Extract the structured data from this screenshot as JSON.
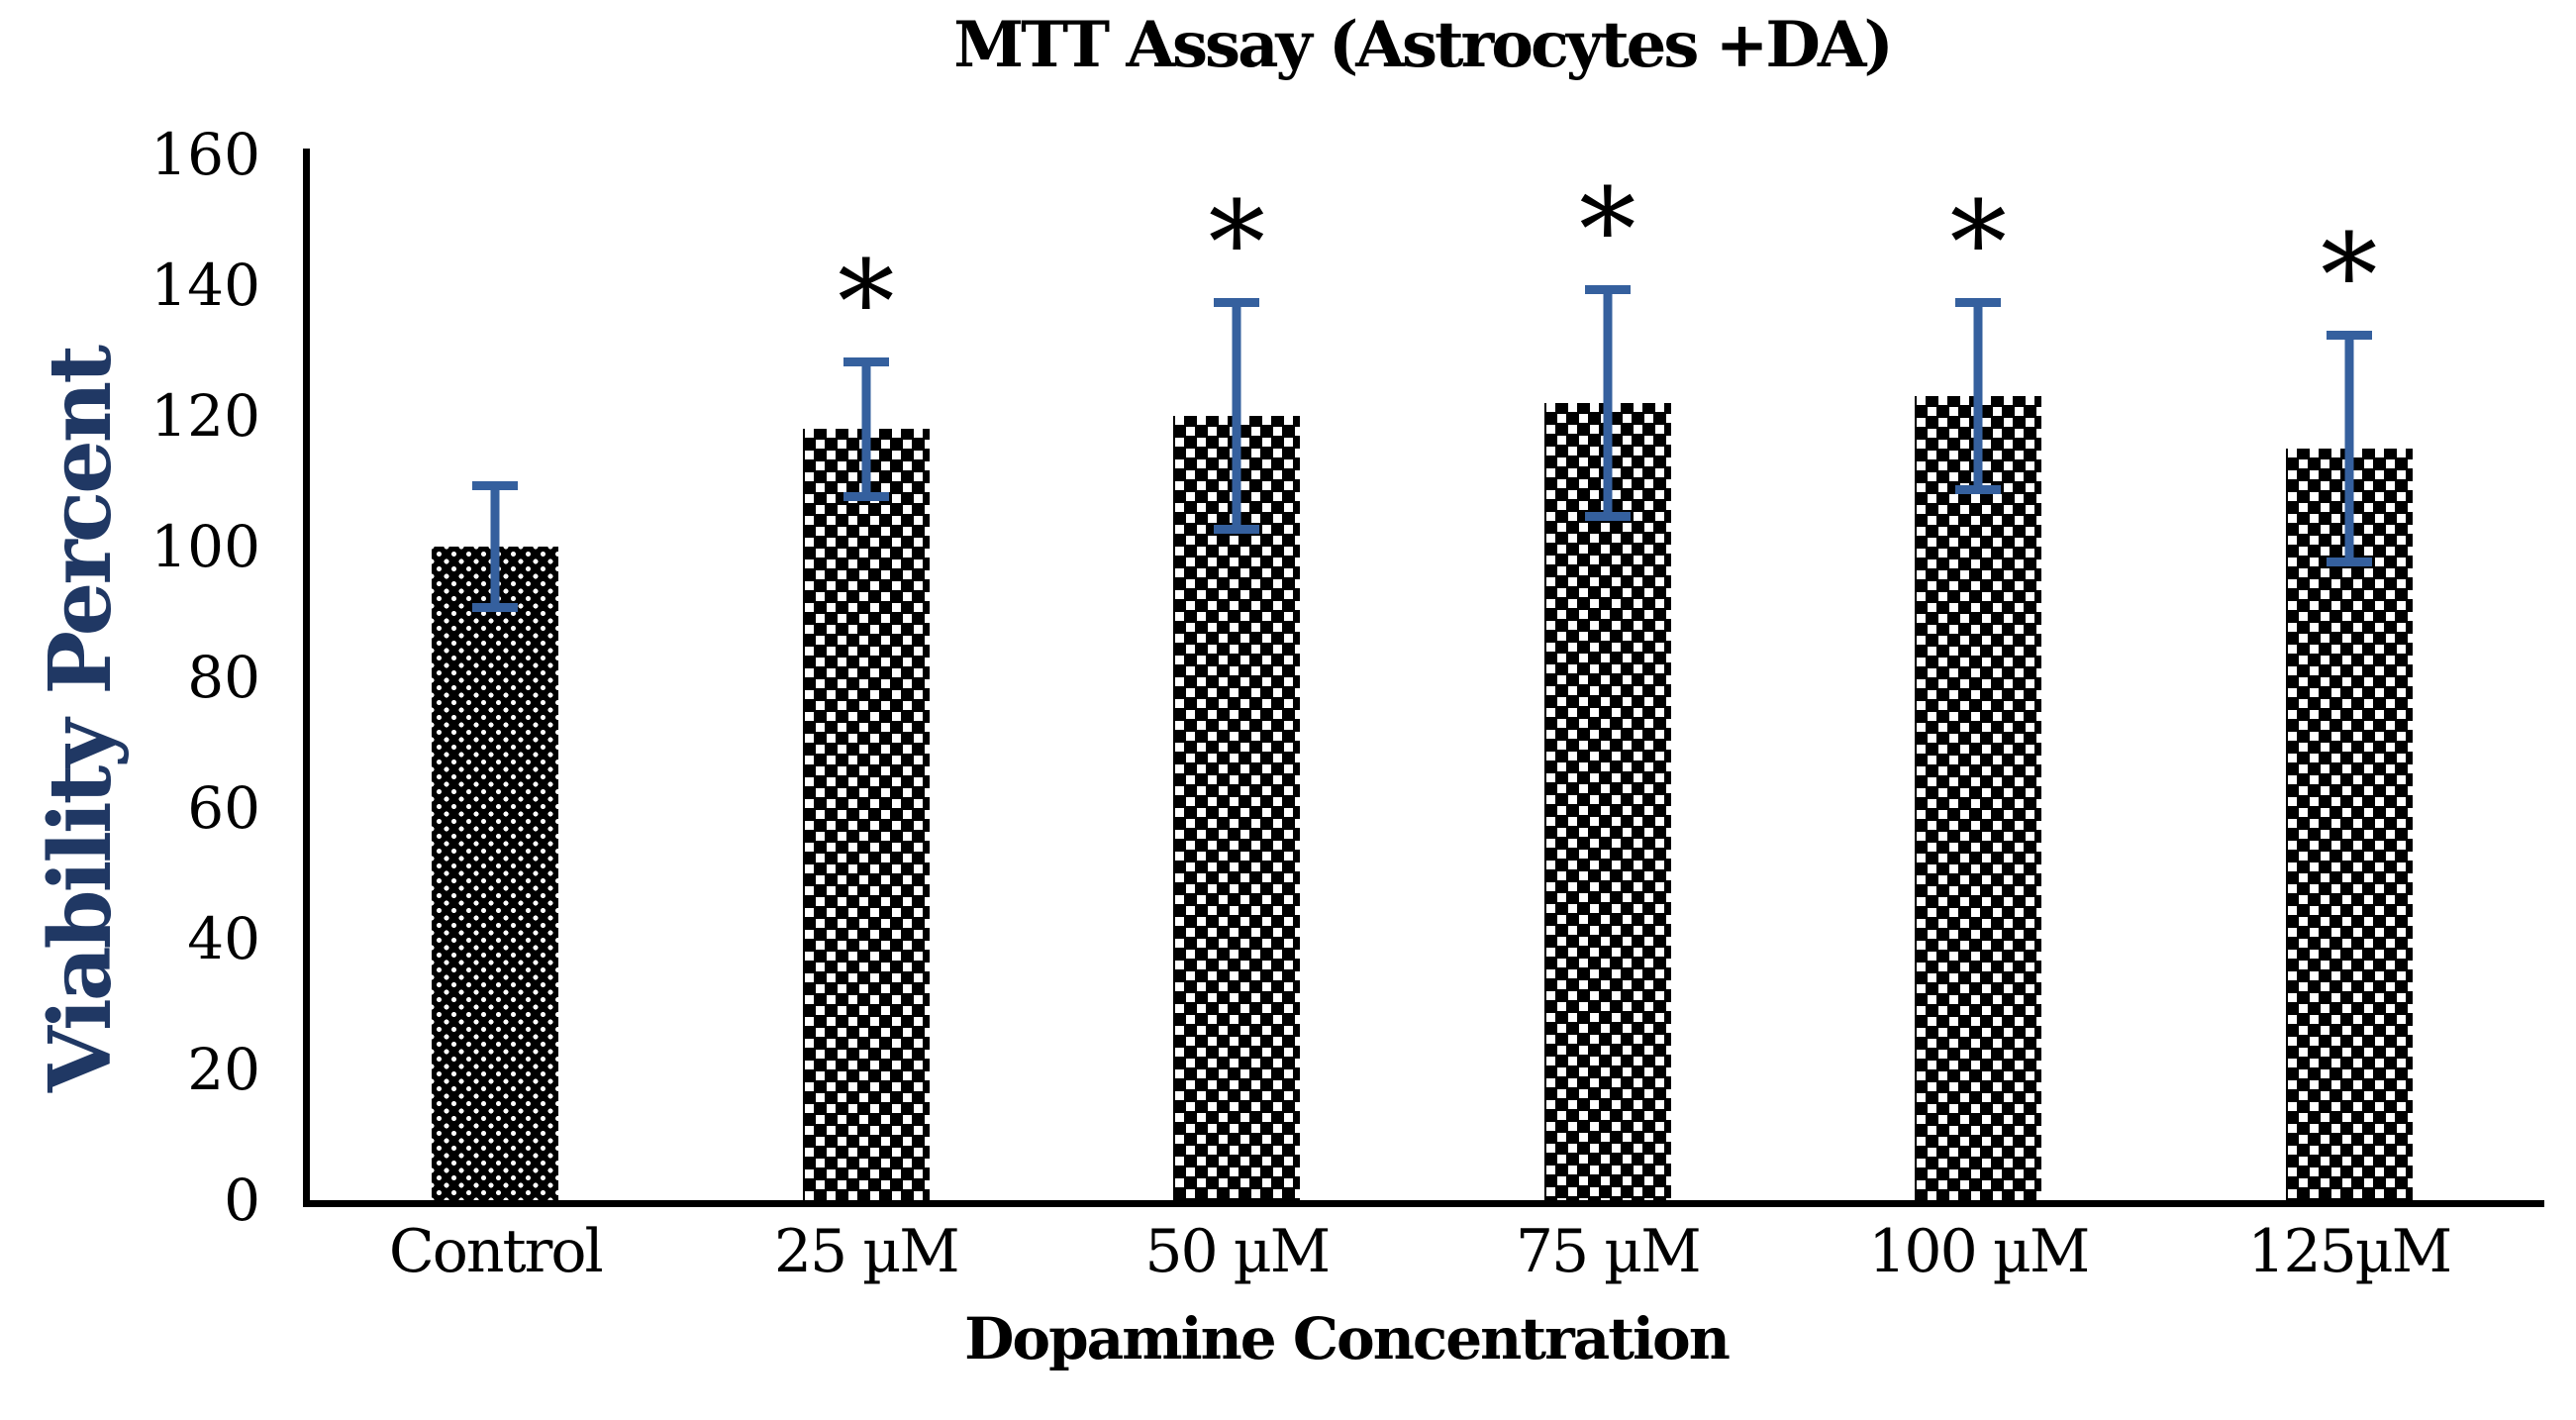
{
  "chart_data": {
    "type": "bar",
    "title": "MTT Assay (Astrocytes +DA)",
    "xlabel": "Dopamine Concentration",
    "ylabel": "Viability Percent",
    "categories": [
      "Control",
      "25 µM",
      "50 µM",
      "75 µM",
      "100 µM",
      "125µM"
    ],
    "series": [
      {
        "name": "Viability Percent",
        "values": [
          100,
          118,
          120,
          122,
          123,
          115
        ],
        "error_bars_plus_minus": [
          10,
          11,
          18,
          18,
          15,
          18
        ]
      }
    ],
    "significance": {
      "symbol": "*",
      "flags": [
        false,
        true,
        true,
        true,
        true,
        true
      ]
    },
    "ylim": [
      0,
      160
    ],
    "yticks": [
      0,
      20,
      40,
      60,
      80,
      100,
      120,
      140,
      160
    ],
    "grid": false,
    "legend": "none",
    "bar_patterns": [
      "dotted-grid",
      "checkerboard",
      "checkerboard",
      "checkerboard",
      "checkerboard",
      "checkerboard"
    ],
    "colors": {
      "bar_fill": "#000000",
      "pattern_holes": "#ffffff",
      "error_bar": "#35609E",
      "axis": "#000000",
      "title": "#000000",
      "ylabel": "#203864",
      "xlabel": "#000000",
      "tick_labels": "#000000",
      "significance_marker": "#000000"
    }
  }
}
